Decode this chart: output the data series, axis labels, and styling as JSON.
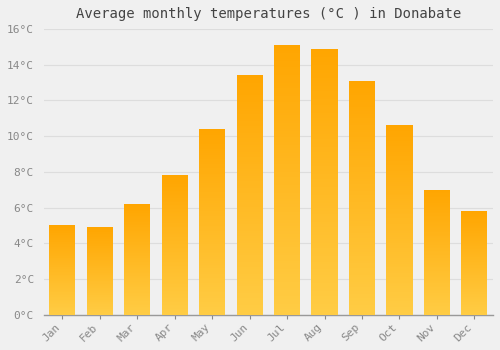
{
  "title": "Average monthly temperatures (°C ) in Donabate",
  "months": [
    "Jan",
    "Feb",
    "Mar",
    "Apr",
    "May",
    "Jun",
    "Jul",
    "Aug",
    "Sep",
    "Oct",
    "Nov",
    "Dec"
  ],
  "values": [
    5.0,
    4.9,
    6.2,
    7.8,
    10.4,
    13.4,
    15.1,
    14.9,
    13.1,
    10.6,
    7.0,
    5.8
  ],
  "ylim": [
    0,
    16
  ],
  "yticks": [
    0,
    2,
    4,
    6,
    8,
    10,
    12,
    14,
    16
  ],
  "ytick_labels": [
    "0°C",
    "2°C",
    "4°C",
    "6°C",
    "8°C",
    "10°C",
    "12°C",
    "14°C",
    "16°C"
  ],
  "bar_color_bottom": "#FFCC44",
  "bar_color_top": "#FFA500",
  "background_color": "#F0F0F0",
  "grid_color": "#DDDDDD",
  "title_fontsize": 10,
  "tick_fontsize": 8,
  "title_color": "#444444",
  "tick_color": "#888888",
  "bar_width": 0.7,
  "n_gradient_steps": 100
}
